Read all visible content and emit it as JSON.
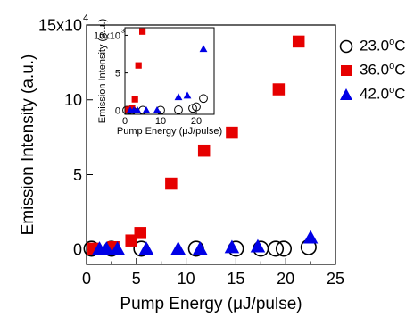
{
  "chart_data": [
    {
      "type": "scatter",
      "title": "",
      "xlabel": "Pump Energy (μJ/pulse)",
      "ylabel": "Emission Intensity (a.u.)",
      "xlim": [
        0,
        25
      ],
      "ylim": [
        -1,
        15
      ],
      "x_ticks": [
        "0",
        "5",
        "10",
        "15",
        "20",
        "25"
      ],
      "y_ticks": [
        "0",
        "5",
        "10",
        "15x10"
      ],
      "y_exponent": "4",
      "y_multiplier": 10000,
      "legend_position": "right",
      "series": [
        {
          "name": "23.0°C",
          "legend_value": "23.0",
          "legend_unit": "C",
          "legend_degree": "o",
          "marker": "open-circle",
          "color": "#000000",
          "x": [
            0.5,
            2.5,
            5.5,
            11.0,
            15.0,
            17.5,
            19.0,
            19.8,
            22.3
          ],
          "y": [
            0.05,
            0.05,
            0.05,
            0.05,
            0.05,
            0.05,
            0.05,
            0.05,
            0.15
          ]
        },
        {
          "name": "36.0°C",
          "legend_value": "36.0",
          "legend_unit": "C",
          "legend_degree": "o",
          "marker": "filled-square",
          "color": "#e60000",
          "x": [
            0.7,
            2.7,
            4.5,
            5.4,
            8.5,
            11.8,
            14.6,
            19.3,
            21.3
          ],
          "y": [
            0.05,
            0.15,
            0.6,
            1.1,
            4.4,
            6.6,
            7.8,
            10.7,
            13.9
          ]
        },
        {
          "name": "42.0°C",
          "legend_value": "42.0",
          "legend_unit": "C",
          "legend_degree": "o",
          "marker": "filled-triangle",
          "color": "#0000e6",
          "x": [
            1.3,
            2.0,
            3.1,
            6.0,
            9.2,
            11.4,
            14.6,
            17.2,
            22.5
          ],
          "y": [
            0.05,
            0.05,
            0.05,
            0.05,
            0.05,
            0.05,
            0.15,
            0.2,
            0.8
          ]
        }
      ]
    },
    {
      "type": "scatter",
      "inset": true,
      "title": "",
      "xlabel": "Pump Energy (μJ/pulse)",
      "ylabel": "Emission Intensity (a.u.)",
      "xlim": [
        0,
        25
      ],
      "ylim": [
        -0.5,
        11
      ],
      "x_ticks": [
        "0",
        "10",
        "20"
      ],
      "y_ticks": [
        "0",
        "5",
        "10x10"
      ],
      "y_exponent": "3",
      "y_multiplier": 1000,
      "series": [
        {
          "name": "23.0°C",
          "marker": "open-circle",
          "color": "#000000",
          "x": [
            0.5,
            2.0,
            5.0,
            10.0,
            15.0,
            19.0,
            20.0,
            22.0
          ],
          "y": [
            0.05,
            0.05,
            0.05,
            0.05,
            0.1,
            0.3,
            0.5,
            1.6
          ]
        },
        {
          "name": "36.0°C",
          "marker": "filled-square",
          "color": "#e60000",
          "x": [
            1.0,
            2.0,
            2.8,
            3.8,
            4.9
          ],
          "y": [
            0.1,
            0.3,
            1.5,
            6.0,
            10.5
          ]
        },
        {
          "name": "42.0°C",
          "marker": "filled-triangle",
          "color": "#0000e6",
          "x": [
            1.5,
            2.5,
            3.5,
            6.0,
            9.0,
            15.0,
            17.5,
            22.0
          ],
          "y": [
            0.05,
            0.05,
            0.05,
            0.05,
            0.05,
            1.8,
            2.0,
            8.2
          ]
        }
      ]
    }
  ]
}
